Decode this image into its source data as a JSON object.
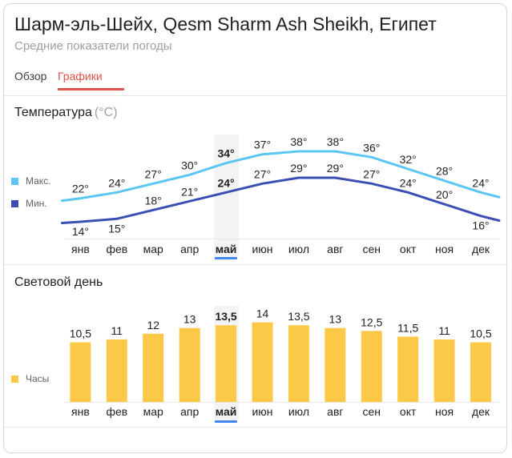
{
  "header": {
    "title": "Шарм-эль-Шейх, Qesm Sharm Ash Sheikh, Египет",
    "subtitle": "Средние показатели погоды",
    "tabs": [
      {
        "label": "Обзор",
        "active": false
      },
      {
        "label": "Графики",
        "active": true
      }
    ]
  },
  "months": [
    "янв",
    "фев",
    "мар",
    "апр",
    "май",
    "июн",
    "июл",
    "авг",
    "сен",
    "окт",
    "ноя",
    "дек"
  ],
  "selected_month": "май",
  "selected_month_index": 4,
  "colors": {
    "accent_red": "#df5348",
    "selected_month_blue": "#4285f4",
    "highlight_band": "#f3f3f3",
    "axis_line": "#e9e9e9"
  },
  "chart_data": [
    {
      "type": "line",
      "title": "Температура",
      "unit_label": "(°C)",
      "categories": [
        "янв",
        "фев",
        "мар",
        "апр",
        "май",
        "июн",
        "июл",
        "авг",
        "сен",
        "окт",
        "ноя",
        "дек"
      ],
      "series": [
        {
          "name": "Макс.",
          "color": "#5bc6f2",
          "values": [
            22,
            24,
            27,
            30,
            34,
            37,
            38,
            38,
            36,
            32,
            28,
            24
          ]
        },
        {
          "name": "Мин.",
          "color": "#3b4eb4",
          "values": [
            14,
            15,
            18,
            21,
            24,
            27,
            29,
            29,
            27,
            24,
            20,
            16
          ]
        }
      ],
      "value_suffix": "°",
      "highlight_index": 4,
      "legend_position": "left",
      "grid": false
    },
    {
      "type": "bar",
      "title": "Световой день",
      "categories": [
        "янв",
        "фев",
        "мар",
        "апр",
        "май",
        "июн",
        "июл",
        "авг",
        "сен",
        "окт",
        "ноя",
        "дек"
      ],
      "series": [
        {
          "name": "Часы",
          "color": "#fcc848",
          "values": [
            10.5,
            11,
            12,
            13,
            13.5,
            14,
            13.5,
            13,
            12.5,
            11.5,
            11,
            10.5
          ]
        }
      ],
      "value_labels": [
        "10,5",
        "11",
        "12",
        "13",
        "13,5",
        "14",
        "13,5",
        "13",
        "12,5",
        "11,5",
        "11",
        "10,5"
      ],
      "highlight_index": 4,
      "legend_position": "left",
      "grid": false,
      "ylim": [
        0,
        14
      ]
    }
  ]
}
